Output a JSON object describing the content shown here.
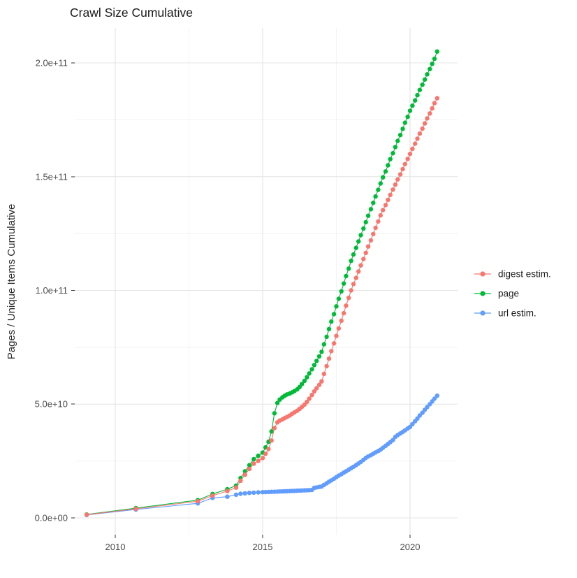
{
  "chart_data": {
    "type": "line",
    "title": "Crawl Size Cumulative",
    "xlabel": "",
    "ylabel": "Pages / Unique Items Cumulative",
    "x_ticks": [
      "2010",
      "2015",
      "2020"
    ],
    "x_tick_years": [
      2010,
      2015,
      2020
    ],
    "x_minor_years": [
      2012.5,
      2017.5
    ],
    "y_ticks": [
      "0.0e+00",
      "5.0e+10",
      "1.0e+11",
      "1.5e+11",
      "2.0e+11"
    ],
    "y_tick_values_e9": [
      0,
      50,
      100,
      150,
      200
    ],
    "y_minor_values_e9": [
      25,
      75,
      125,
      175
    ],
    "x_range_years": [
      2008.6,
      2021.6
    ],
    "y_range_e9": [
      -7,
      215
    ],
    "grid": "on",
    "legend_position": "right",
    "marker": "point",
    "values_unit": "1e9 (billions of pages / items)",
    "series": [
      {
        "id": "digest-estim",
        "name": "digest estim.",
        "color": "#F8766D",
        "points": [
          [
            2009.03,
            1.4
          ],
          [
            2010.7,
            4.0
          ],
          [
            2012.8,
            7.3
          ],
          [
            2013.3,
            9.8
          ],
          [
            2013.8,
            11.8
          ],
          [
            2014.1,
            13.3
          ],
          [
            2014.25,
            16.3
          ],
          [
            2014.4,
            19.0
          ],
          [
            2014.55,
            21.5
          ],
          [
            2014.7,
            23.8
          ],
          [
            2014.85,
            25.1
          ],
          [
            2015.0,
            26.3
          ],
          [
            2015.1,
            28.2
          ],
          [
            2015.2,
            30.3
          ],
          [
            2015.3,
            34.0
          ],
          [
            2015.4,
            39.5
          ],
          [
            2015.5,
            42.0
          ],
          [
            2015.58,
            42.8
          ],
          [
            2015.67,
            43.3
          ],
          [
            2015.75,
            43.9
          ],
          [
            2015.83,
            44.4
          ],
          [
            2015.92,
            45.0
          ],
          [
            2016.0,
            45.8
          ],
          [
            2016.08,
            46.4
          ],
          [
            2016.17,
            47.1
          ],
          [
            2016.25,
            47.9
          ],
          [
            2016.33,
            48.8
          ],
          [
            2016.42,
            49.8
          ],
          [
            2016.5,
            51.0
          ],
          [
            2016.58,
            52.4
          ],
          [
            2016.67,
            54.0
          ],
          [
            2016.75,
            55.6
          ],
          [
            2016.83,
            57.0
          ],
          [
            2016.92,
            58.5
          ],
          [
            2017.0,
            60.0
          ],
          [
            2017.08,
            63.3
          ],
          [
            2017.17,
            66.7
          ],
          [
            2017.25,
            70.0
          ],
          [
            2017.33,
            73.3
          ],
          [
            2017.42,
            76.7
          ],
          [
            2017.5,
            80.0
          ],
          [
            2017.58,
            83.3
          ],
          [
            2017.67,
            86.7
          ],
          [
            2017.75,
            90.0
          ],
          [
            2017.83,
            93.3
          ],
          [
            2017.92,
            96.7
          ],
          [
            2018.0,
            100.0
          ],
          [
            2018.08,
            102.8
          ],
          [
            2018.17,
            105.5
          ],
          [
            2018.25,
            108.3
          ],
          [
            2018.33,
            111.0
          ],
          [
            2018.42,
            113.8
          ],
          [
            2018.5,
            116.5
          ],
          [
            2018.58,
            119.3
          ],
          [
            2018.67,
            122.0
          ],
          [
            2018.75,
            124.8
          ],
          [
            2018.83,
            127.5
          ],
          [
            2018.92,
            130.3
          ],
          [
            2019.0,
            133.0
          ],
          [
            2019.08,
            135.3
          ],
          [
            2019.17,
            137.5
          ],
          [
            2019.25,
            139.8
          ],
          [
            2019.33,
            142.0
          ],
          [
            2019.42,
            144.3
          ],
          [
            2019.5,
            146.5
          ],
          [
            2019.58,
            148.8
          ],
          [
            2019.67,
            151.0
          ],
          [
            2019.75,
            153.3
          ],
          [
            2019.83,
            155.5
          ],
          [
            2019.92,
            157.8
          ],
          [
            2020.0,
            160.0
          ],
          [
            2020.08,
            162.2
          ],
          [
            2020.17,
            164.5
          ],
          [
            2020.25,
            166.7
          ],
          [
            2020.33,
            168.9
          ],
          [
            2020.42,
            171.1
          ],
          [
            2020.5,
            173.4
          ],
          [
            2020.58,
            175.6
          ],
          [
            2020.67,
            177.8
          ],
          [
            2020.75,
            180.0
          ],
          [
            2020.83,
            182.3
          ],
          [
            2020.92,
            184.5
          ]
        ]
      },
      {
        "id": "page",
        "name": "page",
        "color": "#00BA38",
        "points": [
          [
            2009.03,
            1.5
          ],
          [
            2010.7,
            4.3
          ],
          [
            2012.8,
            7.8
          ],
          [
            2013.3,
            10.5
          ],
          [
            2013.8,
            12.6
          ],
          [
            2014.1,
            14.2
          ],
          [
            2014.25,
            17.5
          ],
          [
            2014.4,
            20.5
          ],
          [
            2014.55,
            23.2
          ],
          [
            2014.7,
            25.8
          ],
          [
            2014.85,
            27.3
          ],
          [
            2015.0,
            28.7
          ],
          [
            2015.1,
            31.0
          ],
          [
            2015.2,
            33.5
          ],
          [
            2015.3,
            38.0
          ],
          [
            2015.4,
            46.0
          ],
          [
            2015.5,
            50.5
          ],
          [
            2015.58,
            52.0
          ],
          [
            2015.67,
            53.0
          ],
          [
            2015.75,
            53.7
          ],
          [
            2015.83,
            54.3
          ],
          [
            2015.92,
            54.7
          ],
          [
            2016.0,
            55.2
          ],
          [
            2016.08,
            55.8
          ],
          [
            2016.17,
            56.5
          ],
          [
            2016.25,
            57.5
          ],
          [
            2016.33,
            58.8
          ],
          [
            2016.42,
            60.2
          ],
          [
            2016.5,
            61.8
          ],
          [
            2016.58,
            63.5
          ],
          [
            2016.67,
            65.3
          ],
          [
            2016.75,
            67.2
          ],
          [
            2016.83,
            69.0
          ],
          [
            2016.92,
            71.0
          ],
          [
            2017.0,
            73.0
          ],
          [
            2017.08,
            76.3
          ],
          [
            2017.17,
            79.6
          ],
          [
            2017.25,
            83.0
          ],
          [
            2017.33,
            86.3
          ],
          [
            2017.42,
            89.6
          ],
          [
            2017.5,
            93.0
          ],
          [
            2017.58,
            96.3
          ],
          [
            2017.67,
            99.6
          ],
          [
            2017.75,
            103.0
          ],
          [
            2017.83,
            106.3
          ],
          [
            2017.92,
            109.6
          ],
          [
            2018.0,
            113.0
          ],
          [
            2018.08,
            115.8
          ],
          [
            2018.17,
            118.7
          ],
          [
            2018.25,
            121.5
          ],
          [
            2018.33,
            124.3
          ],
          [
            2018.42,
            127.2
          ],
          [
            2018.5,
            130.0
          ],
          [
            2018.58,
            132.8
          ],
          [
            2018.67,
            135.7
          ],
          [
            2018.75,
            138.5
          ],
          [
            2018.83,
            141.3
          ],
          [
            2018.92,
            144.2
          ],
          [
            2019.0,
            147.0
          ],
          [
            2019.08,
            149.7
          ],
          [
            2019.17,
            152.3
          ],
          [
            2019.25,
            155.0
          ],
          [
            2019.33,
            157.7
          ],
          [
            2019.42,
            160.3
          ],
          [
            2019.5,
            163.0
          ],
          [
            2019.58,
            165.7
          ],
          [
            2019.67,
            168.3
          ],
          [
            2019.75,
            171.0
          ],
          [
            2019.83,
            173.7
          ],
          [
            2019.92,
            176.3
          ],
          [
            2020.0,
            179.0
          ],
          [
            2020.08,
            181.2
          ],
          [
            2020.17,
            183.5
          ],
          [
            2020.25,
            185.8
          ],
          [
            2020.33,
            188.1
          ],
          [
            2020.42,
            190.4
          ],
          [
            2020.5,
            192.7
          ],
          [
            2020.58,
            195.0
          ],
          [
            2020.67,
            197.3
          ],
          [
            2020.75,
            199.6
          ],
          [
            2020.83,
            201.8
          ],
          [
            2020.92,
            205.0
          ]
        ]
      },
      {
        "id": "url-estim",
        "name": "url estim.",
        "color": "#619CFF",
        "points": [
          [
            2009.03,
            1.3
          ],
          [
            2010.7,
            3.7
          ],
          [
            2012.8,
            6.4
          ],
          [
            2013.3,
            8.8
          ],
          [
            2013.8,
            9.3
          ],
          [
            2014.1,
            10.2
          ],
          [
            2014.25,
            10.6
          ],
          [
            2014.4,
            10.8
          ],
          [
            2014.55,
            11.0
          ],
          [
            2014.7,
            11.1
          ],
          [
            2014.85,
            11.2
          ],
          [
            2015.0,
            11.3
          ],
          [
            2015.1,
            11.35
          ],
          [
            2015.2,
            11.4
          ],
          [
            2015.3,
            11.45
          ],
          [
            2015.4,
            11.5
          ],
          [
            2015.5,
            11.55
          ],
          [
            2015.58,
            11.6
          ],
          [
            2015.67,
            11.65
          ],
          [
            2015.75,
            11.7
          ],
          [
            2015.83,
            11.75
          ],
          [
            2015.92,
            11.8
          ],
          [
            2016.0,
            11.85
          ],
          [
            2016.08,
            11.9
          ],
          [
            2016.17,
            11.95
          ],
          [
            2016.25,
            12.0
          ],
          [
            2016.33,
            12.05
          ],
          [
            2016.42,
            12.1
          ],
          [
            2016.5,
            12.15
          ],
          [
            2016.58,
            12.2
          ],
          [
            2016.67,
            12.3
          ],
          [
            2016.75,
            13.2
          ],
          [
            2016.83,
            13.4
          ],
          [
            2016.92,
            13.6
          ],
          [
            2017.0,
            13.8
          ],
          [
            2017.08,
            14.5
          ],
          [
            2017.17,
            15.2
          ],
          [
            2017.25,
            15.9
          ],
          [
            2017.33,
            16.5
          ],
          [
            2017.42,
            17.2
          ],
          [
            2017.5,
            17.9
          ],
          [
            2017.58,
            18.6
          ],
          [
            2017.67,
            19.2
          ],
          [
            2017.75,
            19.9
          ],
          [
            2017.83,
            20.5
          ],
          [
            2017.92,
            21.2
          ],
          [
            2018.0,
            21.8
          ],
          [
            2018.08,
            22.5
          ],
          [
            2018.17,
            23.2
          ],
          [
            2018.25,
            23.9
          ],
          [
            2018.33,
            24.6
          ],
          [
            2018.42,
            25.5
          ],
          [
            2018.5,
            26.4
          ],
          [
            2018.58,
            27.0
          ],
          [
            2018.67,
            27.6
          ],
          [
            2018.75,
            28.2
          ],
          [
            2018.83,
            28.8
          ],
          [
            2018.92,
            29.4
          ],
          [
            2019.0,
            30.0
          ],
          [
            2019.08,
            30.8
          ],
          [
            2019.17,
            31.7
          ],
          [
            2019.25,
            32.5
          ],
          [
            2019.33,
            33.3
          ],
          [
            2019.42,
            34.2
          ],
          [
            2019.5,
            35.6
          ],
          [
            2019.58,
            36.4
          ],
          [
            2019.67,
            37.1
          ],
          [
            2019.75,
            37.8
          ],
          [
            2019.83,
            38.5
          ],
          [
            2019.92,
            39.3
          ],
          [
            2020.0,
            40.0
          ],
          [
            2020.08,
            41.2
          ],
          [
            2020.17,
            42.5
          ],
          [
            2020.25,
            43.7
          ],
          [
            2020.33,
            45.0
          ],
          [
            2020.42,
            46.2
          ],
          [
            2020.5,
            47.5
          ],
          [
            2020.58,
            48.7
          ],
          [
            2020.67,
            50.0
          ],
          [
            2020.75,
            51.2
          ],
          [
            2020.83,
            52.4
          ],
          [
            2020.92,
            53.7
          ]
        ]
      }
    ]
  }
}
